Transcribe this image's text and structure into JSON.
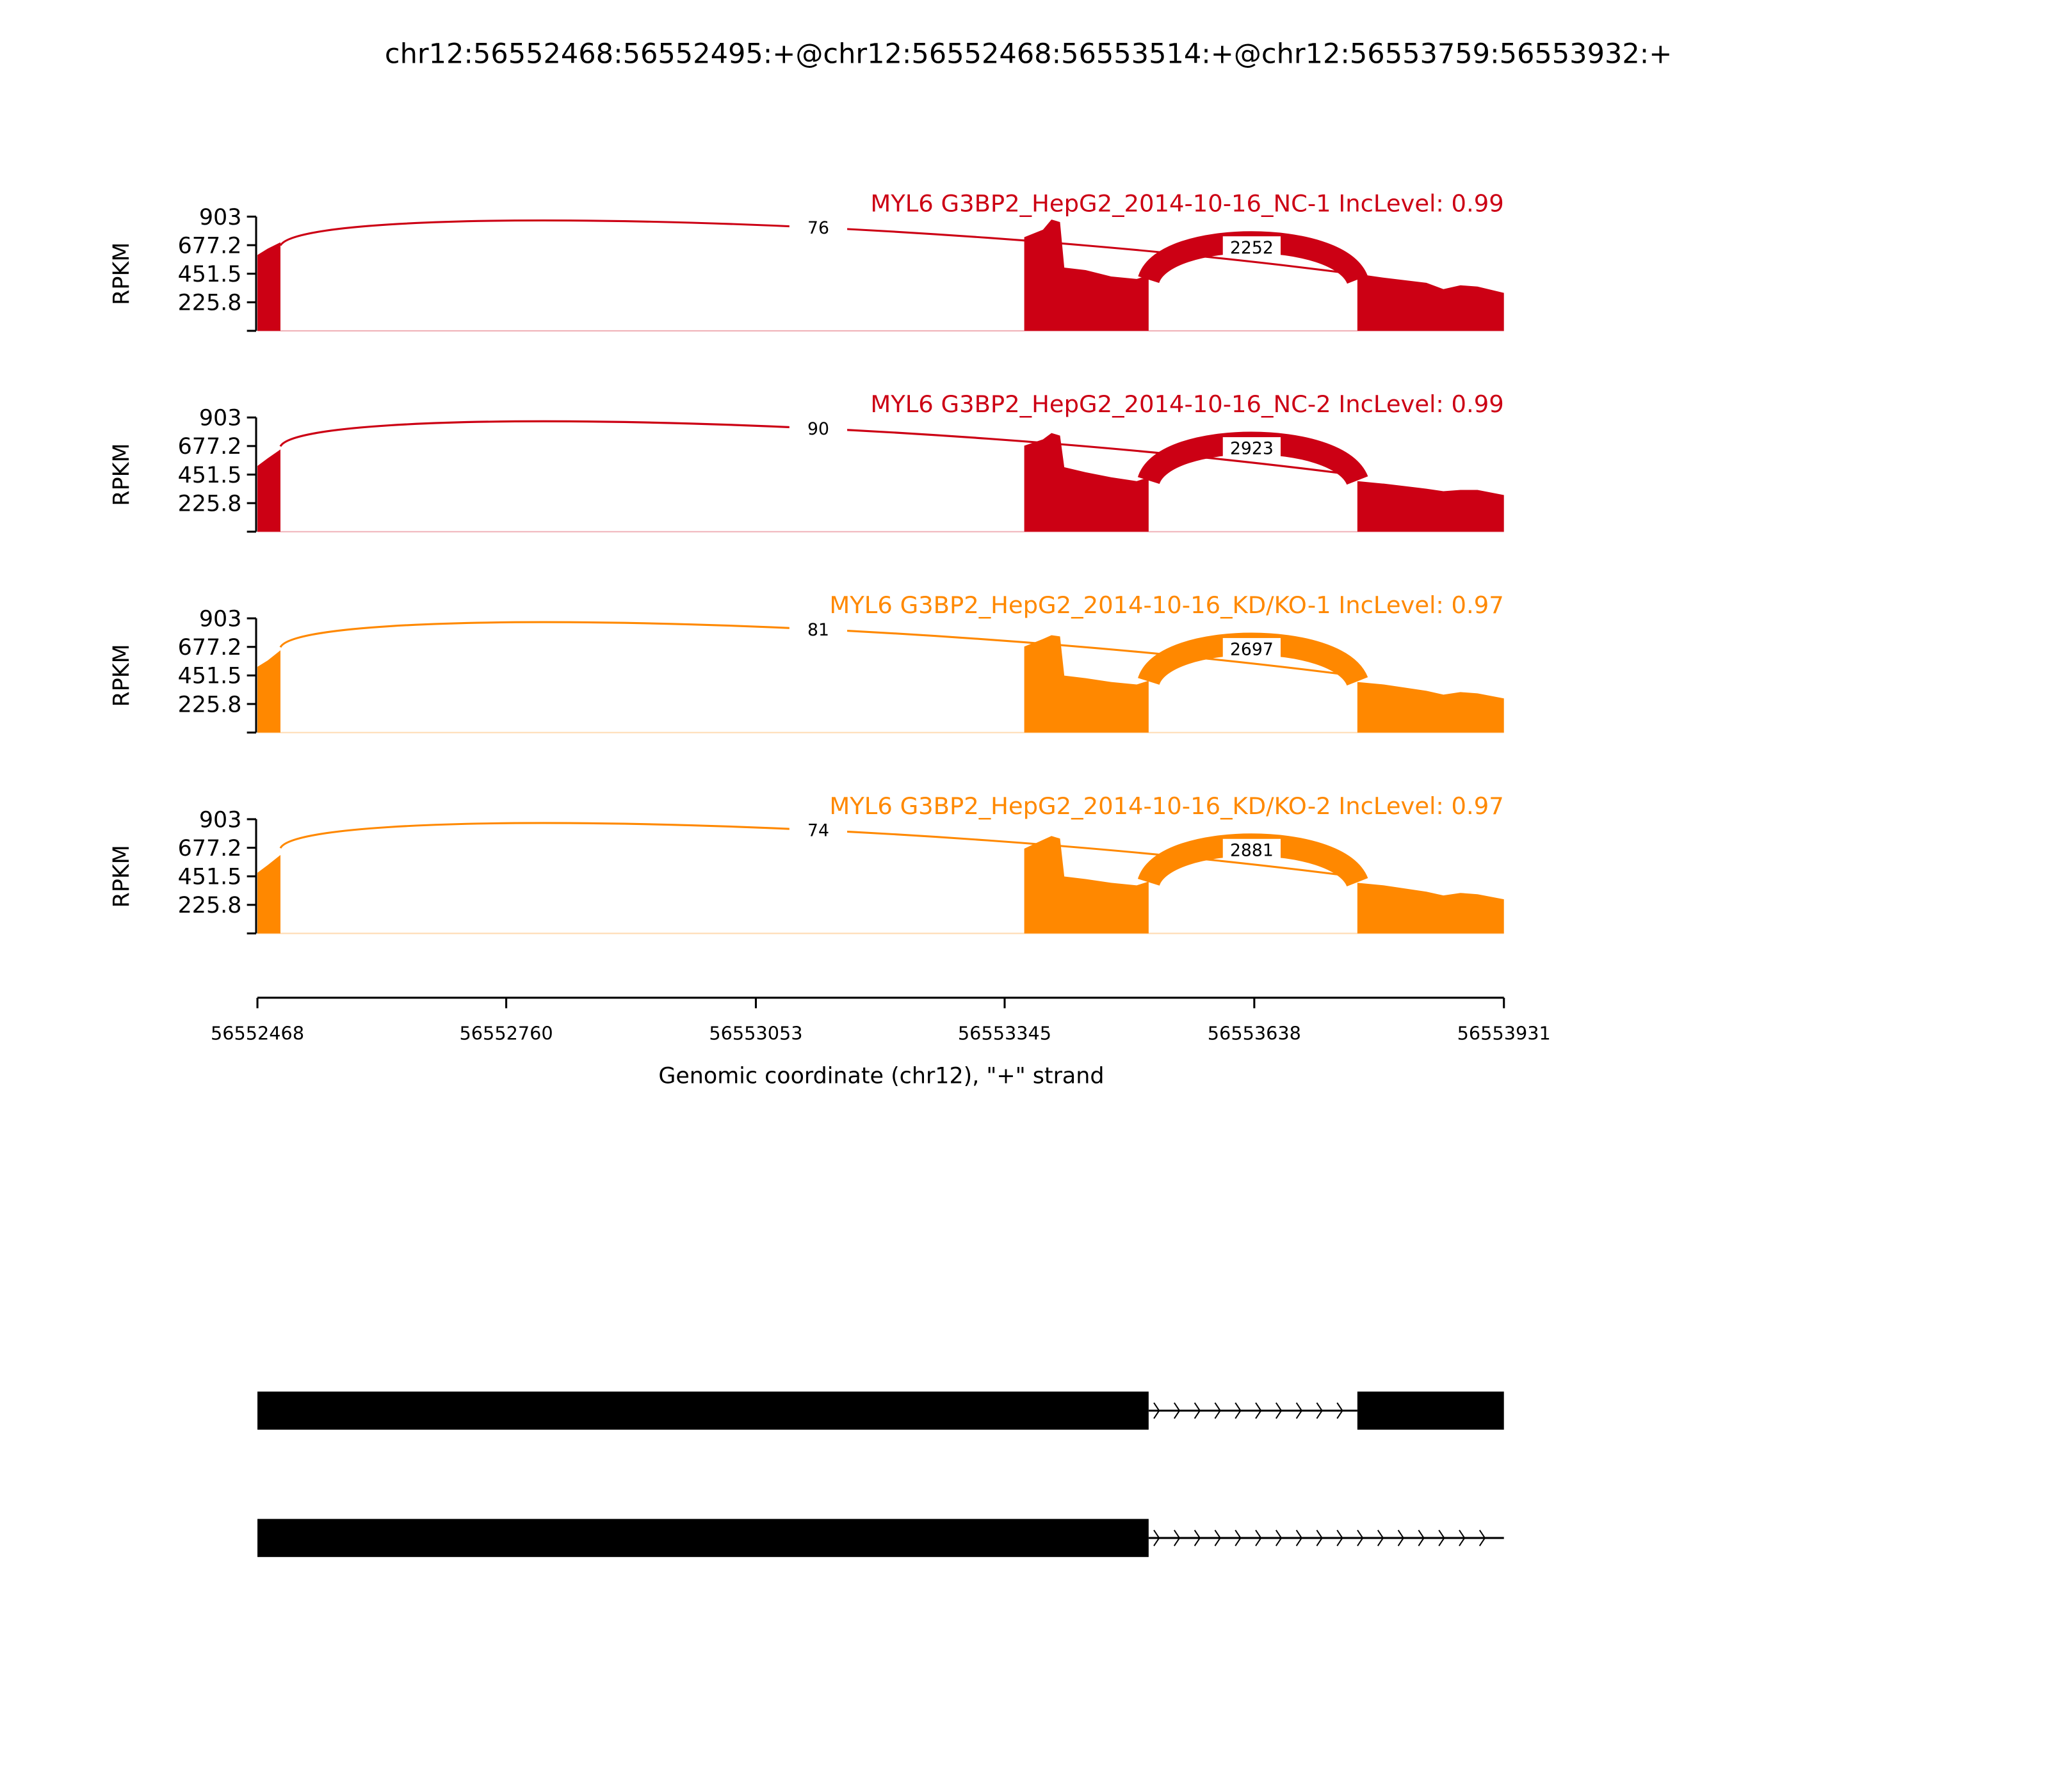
{
  "chart_data": {
    "type": "area",
    "title": "chr12:56552468:56552495:+@chr12:56552468:56553514:+@chr12:56553759:56553932:+",
    "xlabel": "Genomic coordinate (chr12), \"+\" strand",
    "ylabel": "RPKM",
    "xlim": [
      56552468,
      56553931
    ],
    "xticks": [
      "56552468",
      "56552760",
      "56553053",
      "56553345",
      "56553638",
      "56553931"
    ],
    "ylim": [
      0,
      903
    ],
    "yticks": [
      "225.8",
      "451.5",
      "677.2",
      "903"
    ],
    "grid": false,
    "panels": [
      {
        "label": "MYL6 G3BP2_HepG2_2014-10-16_NC-1 IncLevel: 0.99",
        "color": "#cc0014",
        "junctions": [
          {
            "from": 56552495,
            "to": 56553759,
            "count": "76"
          },
          {
            "from": 56553514,
            "to": 56553759,
            "count": "2252"
          }
        ],
        "coverage": [
          [
            56552468,
            600
          ],
          [
            56552480,
            650
          ],
          [
            56552495,
            700
          ],
          [
            56553368,
            740
          ],
          [
            56553390,
            800
          ],
          [
            56553400,
            880
          ],
          [
            56553410,
            860
          ],
          [
            56553415,
            500
          ],
          [
            56553440,
            480
          ],
          [
            56553470,
            430
          ],
          [
            56553500,
            410
          ],
          [
            56553514,
            440
          ],
          [
            56553759,
            450
          ],
          [
            56553790,
            420
          ],
          [
            56553840,
            380
          ],
          [
            56553860,
            330
          ],
          [
            56553880,
            360
          ],
          [
            56553900,
            350
          ],
          [
            56553931,
            300
          ]
        ]
      },
      {
        "label": "MYL6 G3BP2_HepG2_2014-10-16_NC-2 IncLevel: 0.99",
        "color": "#cc0014",
        "junctions": [
          {
            "from": 56552495,
            "to": 56553759,
            "count": "90"
          },
          {
            "from": 56553514,
            "to": 56553759,
            "count": "2923"
          }
        ],
        "coverage": [
          [
            56552468,
            520
          ],
          [
            56552480,
            580
          ],
          [
            56552495,
            650
          ],
          [
            56553368,
            680
          ],
          [
            56553390,
            730
          ],
          [
            56553400,
            780
          ],
          [
            56553410,
            760
          ],
          [
            56553415,
            510
          ],
          [
            56553440,
            470
          ],
          [
            56553470,
            430
          ],
          [
            56553500,
            400
          ],
          [
            56553514,
            430
          ],
          [
            56553759,
            400
          ],
          [
            56553790,
            380
          ],
          [
            56553840,
            340
          ],
          [
            56553860,
            320
          ],
          [
            56553880,
            330
          ],
          [
            56553900,
            330
          ],
          [
            56553931,
            290
          ]
        ]
      },
      {
        "label": "MYL6 G3BP2_HepG2_2014-10-16_KD/KO-1 IncLevel: 0.97",
        "color": "#ff8800",
        "junctions": [
          {
            "from": 56552495,
            "to": 56553759,
            "count": "81"
          },
          {
            "from": 56553514,
            "to": 56553759,
            "count": "2697"
          }
        ],
        "coverage": [
          [
            56552468,
            520
          ],
          [
            56552480,
            570
          ],
          [
            56552495,
            650
          ],
          [
            56553368,
            680
          ],
          [
            56553390,
            740
          ],
          [
            56553400,
            770
          ],
          [
            56553410,
            760
          ],
          [
            56553415,
            450
          ],
          [
            56553440,
            430
          ],
          [
            56553470,
            400
          ],
          [
            56553500,
            380
          ],
          [
            56553514,
            410
          ],
          [
            56553759,
            400
          ],
          [
            56553790,
            380
          ],
          [
            56553840,
            330
          ],
          [
            56553860,
            300
          ],
          [
            56553880,
            320
          ],
          [
            56553900,
            310
          ],
          [
            56553931,
            270
          ]
        ]
      },
      {
        "label": "MYL6 G3BP2_HepG2_2014-10-16_KD/KO-2 IncLevel: 0.97",
        "color": "#ff8800",
        "junctions": [
          {
            "from": 56552495,
            "to": 56553759,
            "count": "74"
          },
          {
            "from": 56553514,
            "to": 56553759,
            "count": "2881"
          }
        ],
        "coverage": [
          [
            56552468,
            480
          ],
          [
            56552480,
            540
          ],
          [
            56552495,
            620
          ],
          [
            56553368,
            670
          ],
          [
            56553390,
            740
          ],
          [
            56553400,
            770
          ],
          [
            56553410,
            750
          ],
          [
            56553415,
            450
          ],
          [
            56553440,
            430
          ],
          [
            56553470,
            400
          ],
          [
            56553500,
            380
          ],
          [
            56553514,
            410
          ],
          [
            56553759,
            400
          ],
          [
            56553790,
            380
          ],
          [
            56553840,
            330
          ],
          [
            56553860,
            300
          ],
          [
            56553880,
            320
          ],
          [
            56553900,
            310
          ],
          [
            56553931,
            270
          ]
        ]
      }
    ],
    "isoforms": [
      {
        "exons": [
          [
            56552468,
            56553514
          ],
          [
            56553759,
            56553931
          ]
        ],
        "intron_end": 56553759
      },
      {
        "exons": [
          [
            56552468,
            56553514
          ]
        ],
        "intron_end": 56553931
      }
    ]
  }
}
